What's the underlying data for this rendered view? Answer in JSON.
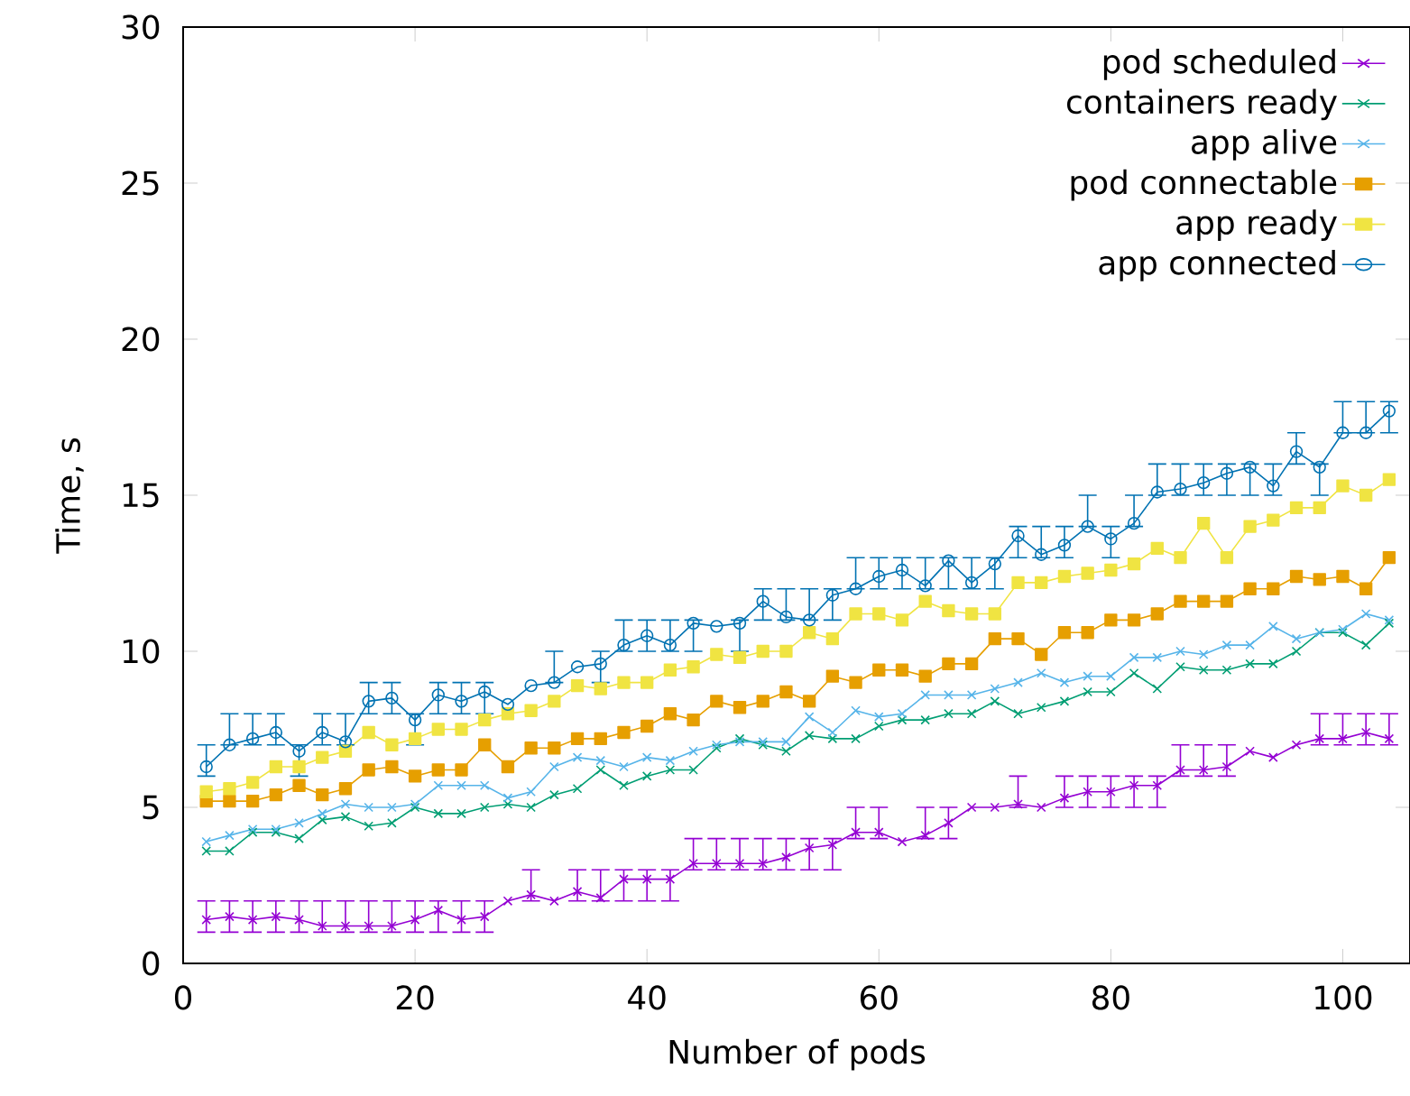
{
  "chart_data": {
    "type": "line",
    "xlabel": "Number of pods",
    "ylabel": "Time, s",
    "xlim": [
      0,
      105.8
    ],
    "ylim": [
      0,
      30
    ],
    "xticks": [
      0,
      20,
      40,
      60,
      80,
      100
    ],
    "yticks": [
      0,
      5,
      10,
      15,
      20,
      25,
      30
    ],
    "grid": false,
    "legend": "top right",
    "line_style": "solid",
    "x": [
      2,
      4,
      6,
      8,
      10,
      12,
      14,
      16,
      18,
      20,
      22,
      24,
      26,
      28,
      30,
      32,
      34,
      36,
      38,
      40,
      42,
      44,
      46,
      48,
      50,
      52,
      54,
      56,
      58,
      60,
      62,
      64,
      66,
      68,
      70,
      72,
      74,
      76,
      78,
      80,
      82,
      84,
      86,
      88,
      90,
      92,
      94,
      96,
      98,
      100,
      102,
      104
    ],
    "series": [
      {
        "name": "pod scheduled",
        "color": "#9400d3",
        "marker": "cross",
        "values": [
          1.4,
          1.5,
          1.4,
          1.5,
          1.4,
          1.2,
          1.2,
          1.2,
          1.2,
          1.4,
          1.7,
          1.4,
          1.5,
          2.0,
          2.2,
          2.0,
          2.3,
          2.1,
          2.7,
          2.7,
          2.7,
          3.2,
          3.2,
          3.2,
          3.2,
          3.4,
          3.7,
          3.8,
          4.2,
          4.2,
          3.9,
          4.1,
          4.5,
          5.0,
          5.0,
          5.1,
          5.0,
          5.3,
          5.5,
          5.5,
          5.7,
          5.7,
          6.2,
          6.2,
          6.3,
          6.8,
          6.6,
          7.0,
          7.2,
          7.2,
          7.4,
          7.2
        ],
        "errors": [
          [
            1,
            2
          ],
          [
            1,
            2
          ],
          [
            1,
            2
          ],
          [
            1,
            2
          ],
          [
            1,
            2
          ],
          [
            1,
            2
          ],
          [
            1,
            2
          ],
          [
            1,
            2
          ],
          [
            1,
            2
          ],
          [
            1,
            2
          ],
          [
            1,
            2
          ],
          [
            1,
            2
          ],
          [
            1,
            2
          ],
          null,
          [
            2,
            3
          ],
          null,
          [
            2,
            3
          ],
          [
            2,
            3
          ],
          [
            2,
            3
          ],
          [
            2,
            3
          ],
          [
            2,
            3
          ],
          [
            3,
            4
          ],
          [
            3,
            4
          ],
          [
            3,
            4
          ],
          [
            3,
            4
          ],
          [
            3,
            4
          ],
          [
            3,
            4
          ],
          [
            3,
            4
          ],
          [
            4,
            5
          ],
          [
            4,
            5
          ],
          null,
          [
            4,
            5
          ],
          [
            4,
            5
          ],
          null,
          null,
          [
            5,
            6
          ],
          null,
          [
            5,
            6
          ],
          [
            5,
            6
          ],
          [
            5,
            6
          ],
          [
            5,
            6
          ],
          [
            5,
            6
          ],
          [
            6,
            7
          ],
          [
            6,
            7
          ],
          [
            6,
            7
          ],
          null,
          null,
          null,
          [
            7,
            8
          ],
          [
            7,
            8
          ],
          [
            7,
            8
          ],
          [
            7,
            8
          ]
        ]
      },
      {
        "name": "containers ready",
        "color": "#009e73",
        "marker": "cross",
        "values": [
          3.6,
          3.6,
          4.2,
          4.2,
          4.0,
          4.6,
          4.7,
          4.4,
          4.5,
          5.0,
          4.8,
          4.8,
          5.0,
          5.1,
          5.0,
          5.4,
          5.6,
          6.2,
          5.7,
          6.0,
          6.2,
          6.2,
          6.9,
          7.2,
          7.0,
          6.8,
          7.3,
          7.2,
          7.2,
          7.6,
          7.8,
          7.8,
          8.0,
          8.0,
          8.4,
          8.0,
          8.2,
          8.4,
          8.7,
          8.7,
          9.3,
          8.8,
          9.5,
          9.4,
          9.4,
          9.6,
          9.6,
          10.0,
          10.6,
          10.6,
          10.2,
          10.9
        ]
      },
      {
        "name": "app alive",
        "color": "#56b4e9",
        "marker": "cross",
        "values": [
          3.9,
          4.1,
          4.3,
          4.3,
          4.5,
          4.8,
          5.1,
          5.0,
          5.0,
          5.1,
          5.7,
          5.7,
          5.7,
          5.3,
          5.5,
          6.3,
          6.6,
          6.5,
          6.3,
          6.6,
          6.5,
          6.8,
          7.0,
          7.1,
          7.1,
          7.1,
          7.9,
          7.4,
          8.1,
          7.9,
          8.0,
          8.6,
          8.6,
          8.6,
          8.8,
          9.0,
          9.3,
          9.0,
          9.2,
          9.2,
          9.8,
          9.8,
          10.0,
          9.9,
          10.2,
          10.2,
          10.8,
          10.4,
          10.6,
          10.7,
          11.2,
          11.0
        ]
      },
      {
        "name": "pod connectable",
        "color": "#e69f00",
        "marker": "square",
        "values": [
          5.2,
          5.2,
          5.2,
          5.4,
          5.7,
          5.4,
          5.6,
          6.2,
          6.3,
          6.0,
          6.2,
          6.2,
          7.0,
          6.3,
          6.9,
          6.9,
          7.2,
          7.2,
          7.4,
          7.6,
          8.0,
          7.8,
          8.4,
          8.2,
          8.4,
          8.7,
          8.4,
          9.2,
          9.0,
          9.4,
          9.4,
          9.2,
          9.6,
          9.6,
          10.4,
          10.4,
          9.9,
          10.6,
          10.6,
          11.0,
          11.0,
          11.2,
          11.6,
          11.6,
          11.6,
          12.0,
          12.0,
          12.4,
          12.3,
          12.4,
          12.0,
          13.0
        ]
      },
      {
        "name": "app ready",
        "color": "#f0e442",
        "marker": "square",
        "values": [
          5.5,
          5.6,
          5.8,
          6.3,
          6.3,
          6.6,
          6.8,
          7.4,
          7.0,
          7.2,
          7.5,
          7.5,
          7.8,
          8.0,
          8.1,
          8.4,
          8.9,
          8.8,
          9.0,
          9.0,
          9.4,
          9.5,
          9.9,
          9.8,
          10.0,
          10.0,
          10.6,
          10.4,
          11.2,
          11.2,
          11.0,
          11.6,
          11.3,
          11.2,
          11.2,
          12.2,
          12.2,
          12.4,
          12.5,
          12.6,
          12.8,
          13.3,
          13.0,
          14.1,
          13.0,
          14.0,
          14.2,
          14.6,
          14.6,
          15.3,
          15.0,
          15.5
        ]
      },
      {
        "name": "app connected",
        "color": "#0072b2",
        "marker": "circle",
        "values": [
          6.3,
          7.0,
          7.2,
          7.4,
          6.8,
          7.4,
          7.1,
          8.4,
          8.5,
          7.8,
          8.6,
          8.4,
          8.7,
          8.3,
          8.9,
          9.0,
          9.5,
          9.6,
          10.2,
          10.5,
          10.2,
          10.9,
          10.8,
          10.9,
          11.6,
          11.1,
          11.0,
          11.8,
          12.0,
          12.4,
          12.6,
          12.1,
          12.9,
          12.2,
          12.8,
          13.7,
          13.1,
          13.4,
          14.0,
          13.6,
          14.1,
          15.1,
          15.2,
          15.4,
          15.7,
          15.9,
          15.3,
          16.4,
          15.9,
          17.0,
          17.0,
          17.7
        ],
        "errors": [
          [
            6,
            7
          ],
          [
            7,
            8
          ],
          [
            7,
            8
          ],
          [
            7,
            8
          ],
          [
            6,
            7
          ],
          [
            7,
            8
          ],
          [
            7,
            8
          ],
          [
            8,
            9
          ],
          [
            8,
            9
          ],
          [
            7,
            8
          ],
          [
            8,
            9
          ],
          [
            8,
            9
          ],
          [
            8,
            9
          ],
          null,
          null,
          [
            9,
            10
          ],
          null,
          [
            9,
            10
          ],
          [
            10,
            11
          ],
          [
            10,
            11
          ],
          [
            10,
            11
          ],
          [
            10,
            11
          ],
          null,
          [
            10,
            11
          ],
          [
            11,
            12
          ],
          [
            11,
            12
          ],
          [
            11,
            12
          ],
          [
            11,
            12
          ],
          [
            12,
            13
          ],
          [
            12,
            13
          ],
          [
            12,
            13
          ],
          [
            12,
            13
          ],
          [
            12,
            13
          ],
          [
            12,
            13
          ],
          [
            12,
            13
          ],
          [
            13,
            14
          ],
          [
            13,
            14
          ],
          [
            13,
            14
          ],
          [
            14,
            15
          ],
          [
            13,
            14
          ],
          [
            14,
            15
          ],
          [
            15,
            16
          ],
          [
            15,
            16
          ],
          [
            15,
            16
          ],
          [
            15,
            16
          ],
          [
            15,
            16
          ],
          [
            15,
            16
          ],
          [
            16,
            17
          ],
          [
            15,
            16
          ],
          [
            17,
            18
          ],
          [
            17,
            18
          ],
          [
            17,
            18
          ]
        ]
      }
    ]
  }
}
